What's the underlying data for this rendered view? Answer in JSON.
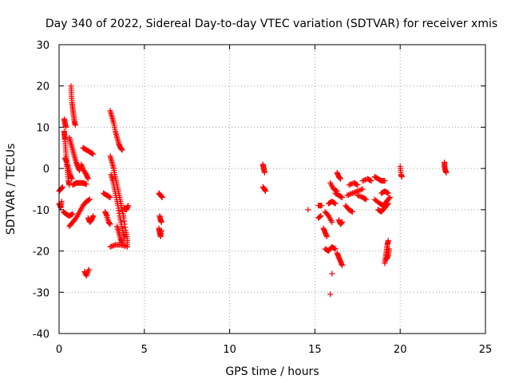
{
  "chart_data": {
    "type": "scatter",
    "title": "Day 340 of 2022, Sidereal Day-to-day VTEC variation (SDTVAR) for receiver xmis",
    "xlabel": "GPS time / hours",
    "ylabel": "SDTVAR / TECUs",
    "xlim": [
      0,
      25
    ],
    "ylim": [
      -40,
      30
    ],
    "xticks": [
      0,
      5,
      10,
      15,
      20,
      25
    ],
    "yticks": [
      -40,
      -30,
      -20,
      -10,
      0,
      10,
      20,
      30
    ],
    "xtick_labels": [
      "0",
      "5",
      "10",
      "15",
      "20",
      "25"
    ],
    "ytick_labels": [
      "-40",
      "-30",
      "-20",
      "-10",
      "0",
      "10",
      "20",
      "30"
    ],
    "grid": true,
    "marker": "+",
    "color": "#ff0000",
    "series": [
      {
        "name": "SDTVAR",
        "tracks": [
          [
            [
              0.0,
              -5.5
            ],
            [
              0.1,
              -5.0
            ],
            [
              0.2,
              -4.5
            ]
          ],
          [
            [
              0.0,
              -8.5
            ],
            [
              0.1,
              -9.5
            ],
            [
              0.15,
              -8.0
            ]
          ],
          [
            [
              0.3,
              9.0
            ],
            [
              0.32,
              8.0
            ],
            [
              0.35,
              7.0
            ],
            [
              0.38,
              5.0
            ],
            [
              0.42,
              3.0
            ],
            [
              0.45,
              1.0
            ],
            [
              0.5,
              -1.0
            ],
            [
              0.55,
              -3.0
            ],
            [
              0.6,
              -4.0
            ]
          ],
          [
            [
              0.3,
              12.0
            ],
            [
              0.35,
              11.0
            ],
            [
              0.4,
              10.0
            ]
          ],
          [
            [
              0.25,
              -10.5
            ],
            [
              0.4,
              -11.0
            ],
            [
              0.6,
              -11.5
            ],
            [
              0.8,
              -11.0
            ]
          ],
          [
            [
              0.35,
              2.5
            ],
            [
              0.45,
              1.5
            ],
            [
              0.55,
              0.0
            ],
            [
              0.65,
              -1.5
            ],
            [
              0.75,
              -2.5
            ]
          ],
          [
            [
              0.7,
              20.0
            ],
            [
              0.72,
              18.0
            ],
            [
              0.76,
              16.0
            ],
            [
              0.8,
              14.5
            ],
            [
              0.85,
              13.0
            ],
            [
              0.9,
              11.5
            ],
            [
              0.95,
              10.5
            ]
          ],
          [
            [
              0.6,
              7.5
            ],
            [
              0.7,
              6.0
            ],
            [
              0.8,
              4.5
            ],
            [
              0.9,
              3.0
            ],
            [
              1.0,
              1.5
            ],
            [
              1.1,
              0.5
            ],
            [
              1.2,
              -0.5
            ]
          ],
          [
            [
              0.6,
              -14.0
            ],
            [
              0.8,
              -13.0
            ],
            [
              1.0,
              -12.0
            ],
            [
              1.2,
              -10.5
            ],
            [
              1.4,
              -9.0
            ],
            [
              1.6,
              -8.0
            ],
            [
              1.8,
              -7.5
            ]
          ],
          [
            [
              0.8,
              -4.0
            ],
            [
              1.0,
              -3.5
            ],
            [
              1.2,
              -3.5
            ],
            [
              1.4,
              -3.5
            ],
            [
              1.6,
              -3.8
            ]
          ],
          [
            [
              1.4,
              5.0
            ],
            [
              1.6,
              4.5
            ],
            [
              1.8,
              4.0
            ],
            [
              2.0,
              3.5
            ]
          ],
          [
            [
              1.3,
              1.0
            ],
            [
              1.45,
              -0.5
            ],
            [
              1.6,
              -1.5
            ],
            [
              1.7,
              -2.5
            ]
          ],
          [
            [
              1.7,
              -12.0
            ],
            [
              1.8,
              -13.0
            ],
            [
              1.9,
              -12.5
            ],
            [
              2.0,
              -11.5
            ]
          ],
          [
            [
              1.5,
              -25.0
            ],
            [
              1.6,
              -26.0
            ],
            [
              1.75,
              -24.5
            ]
          ],
          [
            [
              2.6,
              -6.0
            ],
            [
              2.8,
              -6.5
            ],
            [
              3.0,
              -7.0
            ]
          ],
          [
            [
              2.7,
              -10.5
            ],
            [
              2.8,
              -11.5
            ],
            [
              2.9,
              -13.0
            ],
            [
              3.0,
              -13.5
            ]
          ],
          [
            [
              3.0,
              14.0
            ],
            [
              3.1,
              12.5
            ],
            [
              3.2,
              11.0
            ],
            [
              3.3,
              9.0
            ],
            [
              3.4,
              7.5
            ],
            [
              3.5,
              6.0
            ],
            [
              3.6,
              5.0
            ],
            [
              3.7,
              4.5
            ]
          ],
          [
            [
              3.0,
              3.0
            ],
            [
              3.1,
              1.5
            ],
            [
              3.2,
              0.0
            ],
            [
              3.3,
              -2.0
            ],
            [
              3.4,
              -4.0
            ],
            [
              3.5,
              -6.0
            ],
            [
              3.6,
              -8.0
            ],
            [
              3.7,
              -10.0
            ],
            [
              3.8,
              -12.0
            ],
            [
              3.9,
              -15.0
            ],
            [
              4.0,
              -17.0
            ],
            [
              4.0,
              -19.0
            ]
          ],
          [
            [
              3.05,
              -1.5
            ],
            [
              3.15,
              -3.0
            ],
            [
              3.25,
              -5.0
            ],
            [
              3.35,
              -7.0
            ],
            [
              3.45,
              -9.0
            ],
            [
              3.55,
              -11.5
            ],
            [
              3.65,
              -13.5
            ],
            [
              3.75,
              -15.5
            ],
            [
              3.85,
              -17.0
            ]
          ],
          [
            [
              3.0,
              -19.0
            ],
            [
              3.3,
              -18.5
            ],
            [
              3.6,
              -18.5
            ],
            [
              3.9,
              -18.8
            ]
          ],
          [
            [
              3.4,
              -14.0
            ],
            [
              3.5,
              -15.5
            ],
            [
              3.6,
              -17.0
            ],
            [
              3.7,
              -18.0
            ]
          ],
          [
            [
              3.8,
              -9.5
            ],
            [
              3.95,
              -10.0
            ],
            [
              4.05,
              -9.0
            ]
          ],
          [
            [
              5.85,
              -6.0
            ],
            [
              5.95,
              -6.5
            ],
            [
              6.05,
              -7.0
            ]
          ],
          [
            [
              5.9,
              -11.5
            ],
            [
              5.95,
              -12.5
            ],
            [
              6.0,
              -13.0
            ]
          ],
          [
            [
              5.85,
              -14.5
            ],
            [
              5.9,
              -15.5
            ],
            [
              5.95,
              -16.5
            ],
            [
              6.0,
              -15.0
            ]
          ],
          [
            [
              11.95,
              1.0
            ],
            [
              12.0,
              0.0
            ],
            [
              12.05,
              -1.0
            ]
          ],
          [
            [
              11.95,
              -4.5
            ],
            [
              12.05,
              -5.0
            ],
            [
              12.1,
              -5.5
            ]
          ],
          [
            [
              14.6,
              -10.0
            ]
          ],
          [
            [
              15.2,
              -9.0
            ],
            [
              15.4,
              -9.0
            ]
          ],
          [
            [
              15.2,
              -12.0
            ],
            [
              15.35,
              -11.5
            ]
          ],
          [
            [
              15.6,
              -10.5
            ],
            [
              15.8,
              -11.5
            ],
            [
              16.0,
              -13.0
            ]
          ],
          [
            [
              15.5,
              -14.5
            ],
            [
              15.6,
              -15.5
            ],
            [
              15.7,
              -16.5
            ]
          ],
          [
            [
              15.6,
              -19.5
            ],
            [
              15.8,
              -20.0
            ],
            [
              16.0,
              -19.0
            ],
            [
              16.2,
              -19.5
            ]
          ],
          [
            [
              15.9,
              -3.5
            ],
            [
              16.1,
              -5.0
            ],
            [
              16.3,
              -5.5
            ]
          ],
          [
            [
              15.8,
              -8.5
            ],
            [
              16.0,
              -8.0
            ],
            [
              16.2,
              -8.5
            ]
          ],
          [
            [
              16.0,
              -25.5
            ]
          ],
          [
            [
              15.9,
              -30.5
            ]
          ],
          [
            [
              16.3,
              -1.0
            ],
            [
              16.4,
              -2.0
            ],
            [
              16.5,
              -2.5
            ]
          ],
          [
            [
              16.2,
              -6.0
            ],
            [
              16.4,
              -6.5
            ],
            [
              16.6,
              -7.0
            ]
          ],
          [
            [
              16.4,
              -12.5
            ],
            [
              16.5,
              -13.5
            ],
            [
              16.6,
              -13.0
            ]
          ],
          [
            [
              16.3,
              -20.5
            ],
            [
              16.4,
              -21.5
            ],
            [
              16.5,
              -22.5
            ],
            [
              16.6,
              -23.5
            ]
          ],
          [
            [
              16.8,
              -9.0
            ],
            [
              17.0,
              -10.0
            ],
            [
              17.2,
              -10.5
            ]
          ],
          [
            [
              16.9,
              -6.5
            ],
            [
              17.2,
              -6.0
            ],
            [
              17.5,
              -5.5
            ],
            [
              17.8,
              -5.0
            ]
          ],
          [
            [
              17.0,
              -4.0
            ],
            [
              17.3,
              -3.5
            ],
            [
              17.5,
              -4.0
            ]
          ],
          [
            [
              17.5,
              -6.5
            ],
            [
              17.8,
              -7.0
            ],
            [
              18.0,
              -7.5
            ]
          ],
          [
            [
              17.8,
              -3.0
            ],
            [
              18.1,
              -2.5
            ],
            [
              18.3,
              -3.0
            ]
          ],
          [
            [
              18.5,
              -2.0
            ],
            [
              18.7,
              -2.5
            ],
            [
              18.9,
              -3.0
            ],
            [
              19.1,
              -3.0
            ]
          ],
          [
            [
              18.5,
              -7.5
            ],
            [
              18.8,
              -8.5
            ],
            [
              19.0,
              -9.0
            ],
            [
              19.2,
              -8.0
            ],
            [
              19.4,
              -7.0
            ]
          ],
          [
            [
              18.7,
              -10.0
            ],
            [
              18.9,
              -10.5
            ],
            [
              19.1,
              -9.5
            ],
            [
              19.3,
              -8.5
            ]
          ],
          [
            [
              18.9,
              -6.0
            ],
            [
              19.1,
              -5.5
            ],
            [
              19.3,
              -6.0
            ]
          ],
          [
            [
              19.1,
              -23.0
            ],
            [
              19.15,
              -21.5
            ],
            [
              19.2,
              -20.0
            ],
            [
              19.25,
              -18.5
            ],
            [
              19.3,
              -17.5
            ]
          ],
          [
            [
              19.2,
              -22.0
            ],
            [
              19.3,
              -21.0
            ],
            [
              19.35,
              -19.5
            ]
          ],
          [
            [
              20.0,
              0.5
            ],
            [
              20.05,
              -1.5
            ],
            [
              20.1,
              -2.0
            ]
          ],
          [
            [
              22.6,
              1.5
            ],
            [
              22.6,
              0.5
            ],
            [
              22.65,
              -0.5
            ],
            [
              22.7,
              -1.0
            ]
          ]
        ]
      }
    ]
  }
}
